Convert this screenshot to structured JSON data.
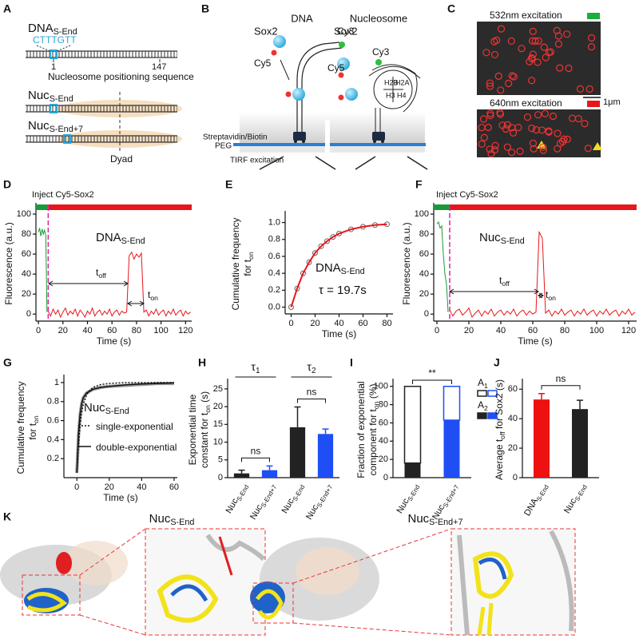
{
  "panel_labels": [
    "A",
    "B",
    "C",
    "D",
    "E",
    "F",
    "G",
    "H",
    "I",
    "J",
    "K"
  ],
  "panel_a": {
    "dna": {
      "text": "DNA",
      "sub": "S-End"
    },
    "motif": "CTTTGTT",
    "pos_start": 1,
    "pos_end": 147,
    "sequence_label": "Nucleosome positioning sequence",
    "nuc": {
      "text": "Nuc",
      "sub": "S-End"
    },
    "nuc7": {
      "text": "Nuc",
      "sub": "S-End+7"
    },
    "dyad": "Dyad"
  },
  "panel_b": {
    "dna_title": "DNA",
    "nuc_title": "Nucleosome",
    "sox2_left": "Sox2",
    "cy5_left": "Cy5",
    "cy3_left": "Cy3",
    "sox2_right": "Sox2",
    "cy5_right": "Cy5",
    "cy3_right": "Cy3",
    "histones": [
      "H2B",
      "H2A",
      "H3",
      "H4"
    ],
    "streptavidin": "Streptavidin/Biotin",
    "peg": "PEG",
    "tirf": "TIRF excitation"
  },
  "panel_c": {
    "green": "532nm excitation",
    "scale": "1μm",
    "red": "640nm excitation"
  },
  "panel_k": {
    "left": {
      "text": "Nuc",
      "sub": "S-End"
    },
    "right": {
      "text": "Nuc",
      "sub": "S-End+7"
    }
  },
  "chart_data": [
    {
      "type": "line",
      "x_label": "Time (s)",
      "y_label": [
        "Fluorescence (a.u.)"
      ],
      "annotations": {
        "inject": "Inject Cy5-Sox2",
        "sample": {
          "text": "DNA",
          "sub": "S-End"
        },
        "t_off": {
          "text": "t",
          "sub": "off"
        },
        "t_on": {
          "text": "t",
          "sub": "on"
        }
      },
      "marker_x": 8,
      "xlim": [
        -2,
        125
      ],
      "ylim": [
        -7,
        108
      ],
      "xticks": [
        0,
        20,
        40,
        60,
        80,
        100,
        120
      ],
      "yticks": [
        0,
        20,
        40,
        60,
        80,
        100
      ],
      "series": [
        {
          "color": "#1a9a3a",
          "x": [
            0,
            1,
            2,
            3,
            4,
            5,
            6,
            7
          ],
          "values": [
            82,
            86,
            78,
            85,
            80,
            84,
            79,
            2
          ]
        },
        {
          "color": "#e8161b",
          "x": [
            8,
            10,
            12,
            14,
            16,
            18,
            20,
            22,
            24,
            26,
            28,
            30,
            32,
            34,
            36,
            38,
            40,
            42,
            44,
            46,
            48,
            50,
            52,
            54,
            56,
            58,
            60,
            62,
            64,
            66,
            68,
            70,
            72,
            74,
            76,
            78,
            80,
            82,
            84,
            86,
            88,
            90,
            92,
            94,
            96,
            98,
            100,
            102,
            104,
            106,
            108,
            110,
            112,
            114,
            116,
            118,
            120,
            122,
            124
          ],
          "values": [
            3,
            -2,
            5,
            0,
            4,
            -3,
            2,
            6,
            -1,
            3,
            0,
            5,
            -2,
            4,
            1,
            -3,
            3,
            0,
            6,
            -2,
            2,
            4,
            -1,
            3,
            0,
            5,
            -2,
            2,
            4,
            -1,
            3,
            1,
            2,
            58,
            62,
            55,
            60,
            57,
            61,
            2,
            4,
            -2,
            3,
            0,
            5,
            -1,
            2,
            4,
            -2,
            3,
            0,
            5,
            -1,
            2,
            4,
            -2,
            3,
            0,
            2
          ]
        }
      ]
    },
    {
      "type": "scatter",
      "x_label": "Time (s)",
      "y_label": [
        "Cumulative frequency",
        {
          "text": "for t",
          "sub": "on"
        }
      ],
      "annotations": {
        "sample": {
          "text": "DNA",
          "sub": "S-End"
        },
        "tau": "τ = 19.7s"
      },
      "xlim": [
        -5,
        85
      ],
      "ylim": [
        -0.08,
        1.1
      ],
      "xticks": [
        0,
        20,
        40,
        60,
        80
      ],
      "yticks": [
        {
          "value": 0,
          "label": "0.0"
        },
        0.2,
        0.4,
        0.6,
        0.8,
        {
          "value": 1,
          "label": "1.0"
        }
      ],
      "x": [
        0,
        5,
        10,
        15,
        20,
        25,
        30,
        35,
        40,
        50,
        60,
        70,
        80
      ],
      "series": [
        {
          "color": "#666666",
          "style": "markers",
          "values": [
            0,
            0.22,
            0.4,
            0.53,
            0.64,
            0.72,
            0.78,
            0.83,
            0.87,
            0.92,
            0.95,
            0.97,
            0.98
          ]
        },
        {
          "color": "#e8161b",
          "style": "line",
          "values": [
            0,
            0.22,
            0.4,
            0.53,
            0.64,
            0.72,
            0.78,
            0.83,
            0.87,
            0.92,
            0.95,
            0.97,
            0.98
          ]
        }
      ]
    },
    {
      "type": "line",
      "x_label": "Time (s)",
      "y_label": [
        "Fluorescence (a.u.)"
      ],
      "annotations": {
        "inject": "Inject Cy5-Sox2",
        "sample": {
          "text": "Nuc",
          "sub": "S-End"
        },
        "t_off": {
          "text": "t",
          "sub": "off"
        },
        "t_on": {
          "text": "t",
          "sub": "on"
        }
      },
      "marker_x": 8,
      "xlim": [
        -2,
        125
      ],
      "ylim": [
        -7,
        108
      ],
      "xticks": [
        0,
        20,
        40,
        60,
        80,
        100,
        120
      ],
      "yticks": [
        0,
        20,
        40,
        60,
        80,
        100
      ],
      "series": [
        {
          "color": "#1a9a3a",
          "x": [
            0,
            1,
            2,
            3,
            4,
            5,
            6,
            7
          ],
          "values": [
            90,
            92,
            86,
            88,
            60,
            40,
            30,
            2
          ]
        },
        {
          "color": "#e8161b",
          "x": [
            8,
            10,
            12,
            14,
            16,
            18,
            20,
            22,
            24,
            26,
            28,
            30,
            32,
            34,
            36,
            38,
            40,
            42,
            44,
            46,
            48,
            50,
            52,
            54,
            56,
            58,
            60,
            62,
            64,
            66,
            68,
            70,
            72,
            74,
            76,
            78,
            80,
            82,
            84,
            86,
            88,
            90,
            92,
            94,
            96,
            98,
            100,
            102,
            104,
            106,
            108,
            110,
            112,
            114,
            116,
            118,
            120,
            122,
            124
          ],
          "values": [
            4,
            -2,
            3,
            5,
            -1,
            2,
            6,
            -3,
            1,
            4,
            -2,
            3,
            0,
            5,
            -2,
            2,
            4,
            -1,
            3,
            0,
            5,
            -2,
            2,
            4,
            -1,
            3,
            0,
            2,
            82,
            76,
            1,
            4,
            -2,
            3,
            0,
            5,
            -1,
            2,
            4,
            -2,
            3,
            0,
            5,
            -1,
            2,
            4,
            -2,
            3,
            0,
            5,
            -1,
            2,
            4,
            -2,
            3,
            0,
            5,
            -1,
            2
          ]
        }
      ]
    },
    {
      "type": "line",
      "x_label": "Time (s)",
      "y_label": [
        "Cumulative frequency",
        {
          "text": "for t",
          "sub": "on"
        }
      ],
      "annotations": {
        "sample": {
          "text": "Nuc",
          "sub": "S-End"
        }
      },
      "xlim": [
        -8,
        62
      ],
      "ylim": [
        0,
        1.05
      ],
      "xticks": [
        0,
        20,
        40,
        60
      ],
      "yticks": [
        0.2,
        0.4,
        0.6,
        0.8,
        1
      ],
      "x": [
        0,
        1,
        2,
        3,
        4,
        6,
        8,
        10,
        15,
        20,
        30,
        40,
        50,
        60
      ],
      "series": [
        {
          "color": "#9a9a9a",
          "style": "thick",
          "values": [
            0.05,
            0.45,
            0.66,
            0.78,
            0.84,
            0.89,
            0.91,
            0.93,
            0.95,
            0.96,
            0.97,
            0.98,
            0.99,
            0.99
          ]
        },
        {
          "name": "single-exponential",
          "color": "#111111",
          "style": "dotted",
          "values": [
            0.05,
            0.35,
            0.55,
            0.68,
            0.77,
            0.87,
            0.92,
            0.95,
            0.98,
            0.99,
            1,
            1,
            1,
            1
          ]
        },
        {
          "name": "double-exponential",
          "color": "#111111",
          "style": "solid",
          "values": [
            0.05,
            0.46,
            0.67,
            0.78,
            0.84,
            0.89,
            0.91,
            0.93,
            0.95,
            0.96,
            0.975,
            0.985,
            0.99,
            0.995
          ]
        }
      ]
    },
    {
      "type": "bar",
      "y_label": [
        "Exponential time",
        {
          "text": "constant for t",
          "sub": "on",
          "after": " (s)"
        }
      ],
      "groups": [
        {
          "text": "τ",
          "sub": "1"
        },
        {
          "text": "τ",
          "sub": "2"
        }
      ],
      "significance": [
        "ns",
        "ns"
      ],
      "categories": [
        {
          "text": "Nuc",
          "sub": "S-End"
        },
        {
          "text": "Nuc",
          "sub": "S-End+7"
        },
        {
          "text": "Nuc",
          "sub": "S-End"
        },
        {
          "text": "Nuc",
          "sub": "S-End+7"
        }
      ],
      "values": [
        1.2,
        2.1,
        14.2,
        12.3
      ],
      "errors": [
        0.9,
        1.2,
        5.7,
        1.4
      ],
      "colors": [
        "#222222",
        "#1f4ef5",
        "#222222",
        "#1f4ef5"
      ],
      "ylim": [
        0,
        27
      ],
      "yticks": [
        0,
        5,
        10,
        15,
        20,
        25
      ]
    },
    {
      "type": "stacked_bar",
      "y_label": [
        "Fraction of exponential",
        {
          "text": "component for t",
          "sub": "on",
          "after": " (%)"
        }
      ],
      "significance": [
        "**"
      ],
      "categories": [
        {
          "text": "Nuc",
          "sub": "S-End"
        },
        {
          "text": "Nuc",
          "sub": "S-End+7"
        }
      ],
      "colors": [
        "#222222",
        "#1f4ef5"
      ],
      "series": [
        {
          "name": {
            "text": "A",
            "sub": "2"
          },
          "fill": "solid",
          "values": [
            16,
            63
          ],
          "errors": [
            3,
            5
          ]
        },
        {
          "name": {
            "text": "A",
            "sub": "1"
          },
          "fill": "outline",
          "values": [
            84,
            37
          ]
        }
      ],
      "ylim": [
        0,
        105
      ],
      "yticks": [
        0,
        20,
        40,
        60,
        80,
        100
      ]
    },
    {
      "type": "bar",
      "y_label": [
        {
          "text": "Average t",
          "sub": "off",
          "after": " for Sox2 (s)"
        }
      ],
      "significance": [
        "ns"
      ],
      "categories": [
        {
          "text": "DNA",
          "sub": "S-End"
        },
        {
          "text": "Nuc",
          "sub": "S-End"
        }
      ],
      "values": [
        53,
        46.5
      ],
      "errors": [
        4,
        6
      ],
      "colors": [
        "#ee1111",
        "#222222"
      ],
      "ylim": [
        0,
        65
      ],
      "yticks": [
        0,
        20,
        40,
        60
      ]
    }
  ]
}
